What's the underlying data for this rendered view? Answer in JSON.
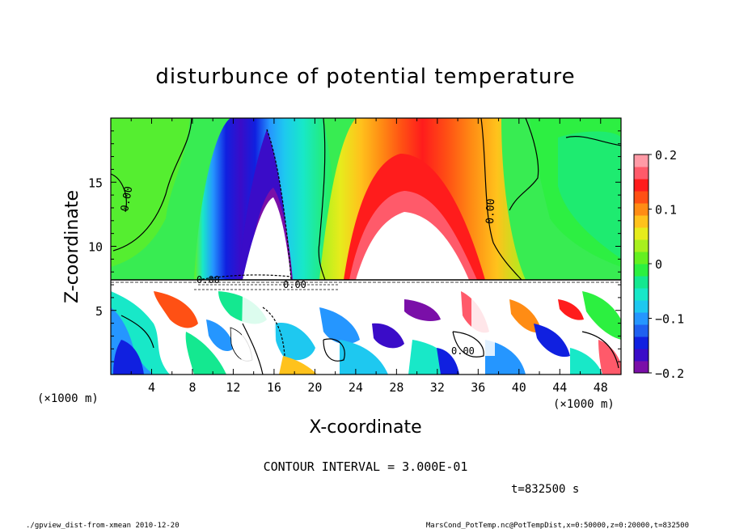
{
  "chart_data": {
    "type": "heatmap",
    "title": "disturbunce of potential temperature",
    "xlabel": "X-coordinate",
    "ylabel": "Z-coordinate",
    "x_unit": "(×1000 m)",
    "z_unit": "(×1000 m)",
    "xlim": [
      0,
      50
    ],
    "ylim": [
      0,
      20
    ],
    "x_ticks": [
      "4",
      "8",
      "12",
      "16",
      "20",
      "24",
      "28",
      "32",
      "36",
      "40",
      "44",
      "48"
    ],
    "y_ticks": [
      "5",
      "10",
      "15"
    ],
    "colorbar": {
      "range": [
        -0.2,
        0.2
      ],
      "tick_labels": [
        "0.2",
        "0.1",
        "0",
        "−0.1",
        "−0.2"
      ],
      "colors": [
        "#7a0fa8",
        "#3a0cc8",
        "#1020e0",
        "#1f60f0",
        "#2596ff",
        "#1ec8f0",
        "#18e8c8",
        "#14e890",
        "#2cf040",
        "#64f020",
        "#a8f01e",
        "#e6ec1c",
        "#ffc21c",
        "#ff8c14",
        "#ff5014",
        "#ff1c1c",
        "#ff5a6a",
        "#ff9aa6"
      ]
    },
    "contour_labels": [
      "0.00",
      "0.00",
      "0.00",
      "0.00",
      "0.00"
    ],
    "contour_interval": "CONTOUR INTERVAL = 3.000E-01",
    "time_label": "t=832500 s",
    "features": [
      {
        "name": "cold plume",
        "x_center_km": 15.5,
        "z_top_km": 19,
        "value_min": -0.2
      },
      {
        "name": "warm plume",
        "x_center_km": 28.5,
        "z_top_km": 20,
        "value_max": 0.2
      },
      {
        "name": "convective boundary layer",
        "z_top_km": 7.4
      }
    ]
  },
  "footer": {
    "left": "./gpview_dist-from-xmean  2010-12-20",
    "right": "MarsCond_PotTemp.nc@PotTempDist,x=0:50000,z=0:20000,t=832500"
  }
}
